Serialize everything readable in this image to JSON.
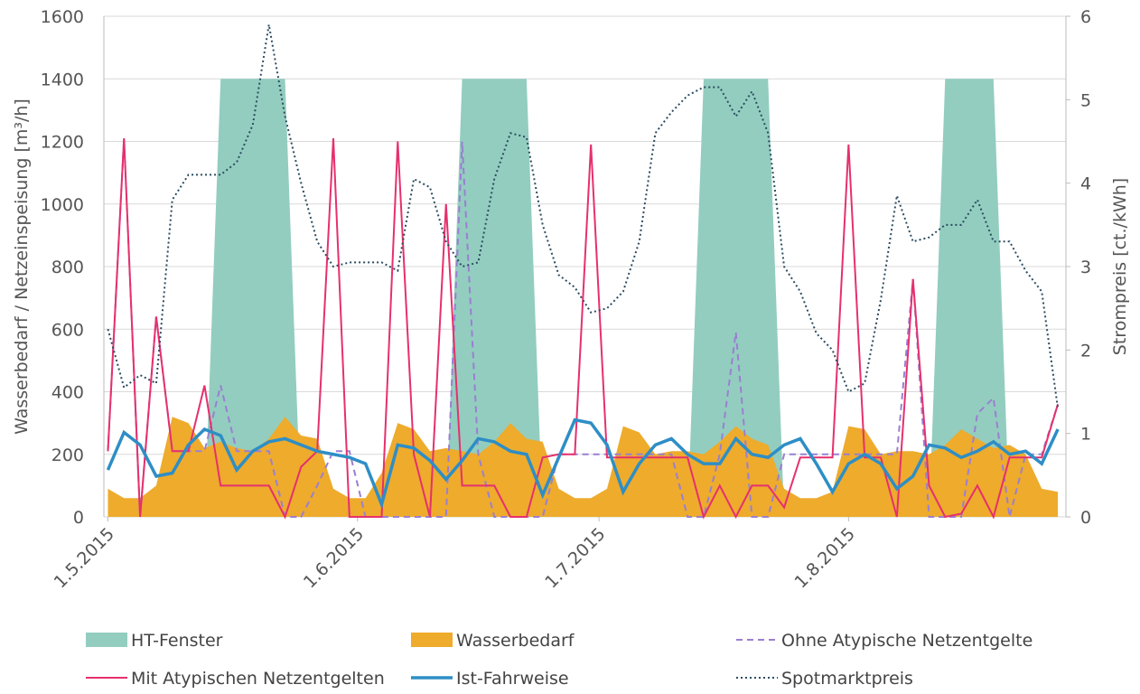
{
  "chart_data": {
    "type": "line",
    "ylabel": "Wasserbedarf / Netzeinspeisung [m³/h]",
    "y2label": "Strompreis [ct./kWh]",
    "xlim": [
      -0.5,
      119
    ],
    "xticks": [
      {
        "value": 0,
        "label": "1.5.2015"
      },
      {
        "value": 31,
        "label": "1.6.2015"
      },
      {
        "value": 61,
        "label": "1.7.2015"
      },
      {
        "value": 92,
        "label": "1.8.2015"
      }
    ],
    "ylim": [
      0,
      1600
    ],
    "yticks": [
      0,
      200,
      400,
      600,
      800,
      1000,
      1200,
      1400,
      1600
    ],
    "y2lim": [
      0,
      6
    ],
    "y2ticks": [
      0,
      1,
      2,
      3,
      4,
      5,
      6
    ],
    "grid": true,
    "x": [
      0,
      2,
      4,
      6,
      8,
      10,
      12,
      14,
      16,
      18,
      20,
      22,
      24,
      26,
      28,
      30,
      32,
      34,
      36,
      38,
      40,
      42,
      44,
      46,
      48,
      50,
      52,
      54,
      56,
      58,
      60,
      62,
      64,
      66,
      68,
      70,
      72,
      74,
      76,
      78,
      80,
      82,
      84,
      86,
      88,
      90,
      92,
      94,
      96,
      98,
      100,
      102,
      104,
      106,
      108,
      110,
      112,
      114,
      116,
      118
    ],
    "series": [
      {
        "name": "HT-Fenster",
        "color": "#93cdbf",
        "kind": "area",
        "values": [
          0,
          0,
          0,
          0,
          0,
          0,
          0,
          1400,
          1400,
          1400,
          1400,
          1400,
          0,
          0,
          0,
          0,
          0,
          0,
          0,
          0,
          0,
          0,
          1400,
          1400,
          1400,
          1400,
          1400,
          0,
          0,
          0,
          0,
          0,
          0,
          0,
          0,
          0,
          0,
          1400,
          1400,
          1400,
          1400,
          1400,
          0,
          0,
          0,
          0,
          0,
          0,
          0,
          0,
          0,
          0,
          1400,
          1400,
          1400,
          1400,
          0,
          0,
          0,
          0
        ]
      },
      {
        "name": "Wasserbedarf",
        "color": "#eeab2c",
        "kind": "area",
        "values": [
          90,
          60,
          60,
          100,
          320,
          300,
          220,
          240,
          220,
          210,
          250,
          320,
          260,
          250,
          90,
          60,
          60,
          140,
          300,
          280,
          210,
          220,
          210,
          200,
          240,
          300,
          250,
          240,
          90,
          60,
          60,
          90,
          290,
          270,
          200,
          210,
          210,
          200,
          240,
          290,
          250,
          230,
          90,
          60,
          60,
          80,
          290,
          280,
          200,
          210,
          210,
          200,
          230,
          280,
          250,
          220,
          230,
          200,
          90,
          80
        ]
      },
      {
        "name": "Ohne Atypische Netzentgelte",
        "color": "#9a7fd2",
        "kind": "line",
        "dash": "7,5",
        "values": [
          210,
          1210,
          0,
          640,
          210,
          210,
          210,
          420,
          210,
          210,
          210,
          0,
          0,
          100,
          210,
          210,
          0,
          0,
          0,
          0,
          0,
          0,
          1200,
          200,
          0,
          0,
          0,
          0,
          200,
          200,
          200,
          200,
          200,
          200,
          200,
          200,
          0,
          0,
          200,
          590,
          0,
          0,
          200,
          200,
          200,
          200,
          200,
          200,
          200,
          200,
          760,
          0,
          0,
          0,
          330,
          380,
          0,
          200,
          200,
          360
        ]
      },
      {
        "name": "Mit Atypischen Netzentgelten",
        "color": "#e6306e",
        "kind": "line",
        "values": [
          210,
          1210,
          0,
          640,
          210,
          210,
          420,
          100,
          100,
          100,
          100,
          0,
          160,
          210,
          1210,
          0,
          0,
          0,
          1200,
          200,
          0,
          1000,
          100,
          100,
          100,
          0,
          0,
          190,
          200,
          200,
          1190,
          190,
          190,
          190,
          190,
          190,
          190,
          0,
          100,
          0,
          100,
          100,
          30,
          190,
          190,
          190,
          1190,
          190,
          190,
          0,
          760,
          100,
          0,
          10,
          100,
          0,
          190,
          190,
          190,
          360
        ]
      },
      {
        "name": "Ist-Fahrweise",
        "color": "#2e8ec6",
        "kind": "line",
        "width": 3.5,
        "values": [
          150,
          270,
          230,
          130,
          140,
          230,
          280,
          260,
          150,
          210,
          240,
          250,
          230,
          210,
          200,
          190,
          170,
          40,
          230,
          220,
          180,
          120,
          180,
          250,
          240,
          210,
          200,
          70,
          190,
          310,
          300,
          230,
          80,
          170,
          230,
          250,
          200,
          170,
          170,
          250,
          200,
          190,
          230,
          250,
          170,
          80,
          170,
          200,
          170,
          90,
          130,
          230,
          220,
          190,
          210,
          240,
          200,
          210,
          170,
          280
        ]
      },
      {
        "name": "Spotmarktpreis",
        "color": "#2b4c61",
        "kind": "line",
        "dash": "2,3",
        "axis": "y2",
        "values": [
          2.25,
          1.55,
          1.7,
          1.6,
          3.8,
          4.1,
          4.1,
          4.1,
          4.25,
          4.7,
          5.9,
          4.8,
          4.0,
          3.3,
          3.0,
          3.05,
          3.05,
          3.05,
          2.95,
          4.05,
          3.95,
          3.3,
          3.0,
          3.05,
          4.05,
          4.6,
          4.55,
          3.5,
          2.9,
          2.75,
          2.45,
          2.5,
          2.7,
          3.3,
          4.6,
          4.85,
          5.05,
          5.15,
          5.15,
          4.8,
          5.1,
          4.6,
          3.0,
          2.7,
          2.2,
          2.0,
          1.5,
          1.6,
          2.6,
          3.85,
          3.3,
          3.35,
          3.5,
          3.5,
          3.8,
          3.3,
          3.3,
          2.95,
          2.7,
          1.3
        ]
      }
    ]
  }
}
